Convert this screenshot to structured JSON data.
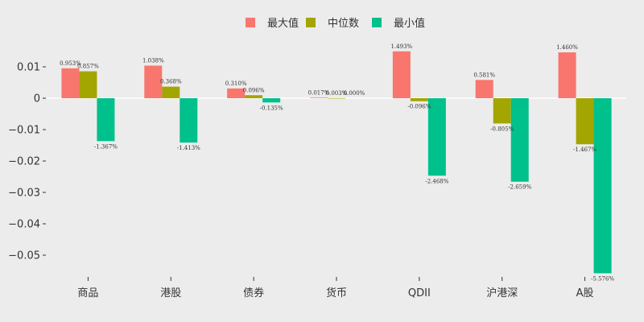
{
  "chart_data": {
    "type": "bar",
    "categories": [
      "商品",
      "港股",
      "债券",
      "货币",
      "QDII",
      "沪港深",
      "A股"
    ],
    "series": [
      {
        "name": "最大值",
        "color": "#f8766d",
        "values": [
          0.00953,
          0.01038,
          0.0031,
          0.00017,
          0.01493,
          0.00581,
          0.0146
        ],
        "labels": [
          "0.953%",
          "1.038%",
          "0.310%",
          "0.017%",
          "1.493%",
          "0.581%",
          "1.460%"
        ]
      },
      {
        "name": "中位数",
        "color": "#a3a500",
        "values": [
          0.00857,
          0.00368,
          0.00096,
          3e-05,
          -0.00096,
          -0.00805,
          -0.01467
        ],
        "labels": [
          "0.857%",
          "0.368%",
          "0.096%",
          "0.003%",
          "-0.096%",
          "-0.805%",
          "-1.467%"
        ]
      },
      {
        "name": "最小值",
        "color": "#00c08b",
        "values": [
          -0.01367,
          -0.01413,
          -0.00135,
          0.0,
          -0.02468,
          -0.02659,
          -0.05576
        ],
        "labels": [
          "-1.367%",
          "-1.413%",
          "-0.135%",
          "0.000%",
          "-2.468%",
          "-2.659%",
          "-5.576%"
        ]
      }
    ],
    "yticks": [
      0.01,
      0,
      -0.01,
      -0.02,
      -0.03,
      -0.04,
      -0.05
    ],
    "ytick_labels": [
      "0.01",
      "0",
      "−0.01",
      "−0.02",
      "−0.03",
      "−0.04",
      "−0.05"
    ],
    "ylim": [
      -0.059,
      0.019
    ],
    "legend_position": "top-center",
    "grid": false,
    "title": "",
    "xlabel": "",
    "ylabel": ""
  }
}
